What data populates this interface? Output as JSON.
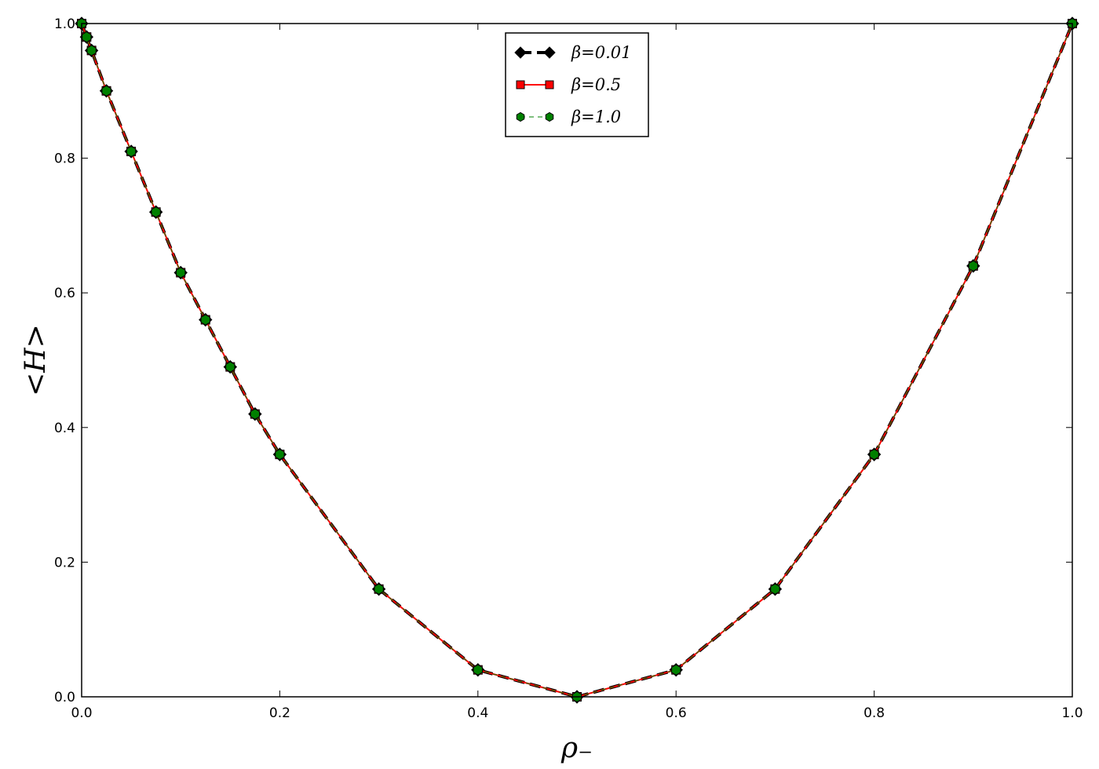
{
  "chart_data": {
    "type": "line",
    "xlabel": "ρ₋",
    "ylabel": "<H>",
    "xlim": [
      0.0,
      1.0
    ],
    "ylim": [
      0.0,
      1.0
    ],
    "xticks": [
      "0.0",
      "0.2",
      "0.4",
      "0.6",
      "0.8",
      "1.0"
    ],
    "yticks": [
      "0.0",
      "0.2",
      "0.4",
      "0.6",
      "0.8",
      "1.0"
    ],
    "grid": false,
    "legend_position": "top-center",
    "x": [
      0.0,
      0.005,
      0.01,
      0.025,
      0.05,
      0.075,
      0.1,
      0.125,
      0.15,
      0.175,
      0.2,
      0.3,
      0.4,
      0.5,
      0.6,
      0.7,
      0.8,
      0.9,
      1.0
    ],
    "series": [
      {
        "name": "β=0.01",
        "color": "#000000",
        "marker": "diamond",
        "linestyle": "dashed",
        "values": [
          1.0,
          0.98,
          0.96,
          0.9,
          0.81,
          0.72,
          0.63,
          0.56,
          0.49,
          0.42,
          0.36,
          0.16,
          0.04,
          0.0,
          0.04,
          0.16,
          0.36,
          0.64,
          1.0
        ]
      },
      {
        "name": "β=0.5",
        "color": "#ff0000",
        "marker": "square",
        "linestyle": "solid",
        "values": [
          1.0,
          0.98,
          0.96,
          0.9,
          0.81,
          0.72,
          0.63,
          0.56,
          0.49,
          0.42,
          0.36,
          0.16,
          0.04,
          0.0,
          0.04,
          0.16,
          0.36,
          0.64,
          1.0
        ]
      },
      {
        "name": "β=1.0",
        "color": "#008000",
        "marker": "hexagon",
        "linestyle": "dashed",
        "values": [
          1.0,
          0.98,
          0.96,
          0.9,
          0.81,
          0.72,
          0.63,
          0.56,
          0.49,
          0.42,
          0.36,
          0.16,
          0.04,
          0.0,
          0.04,
          0.16,
          0.36,
          0.64,
          1.0
        ]
      }
    ]
  }
}
